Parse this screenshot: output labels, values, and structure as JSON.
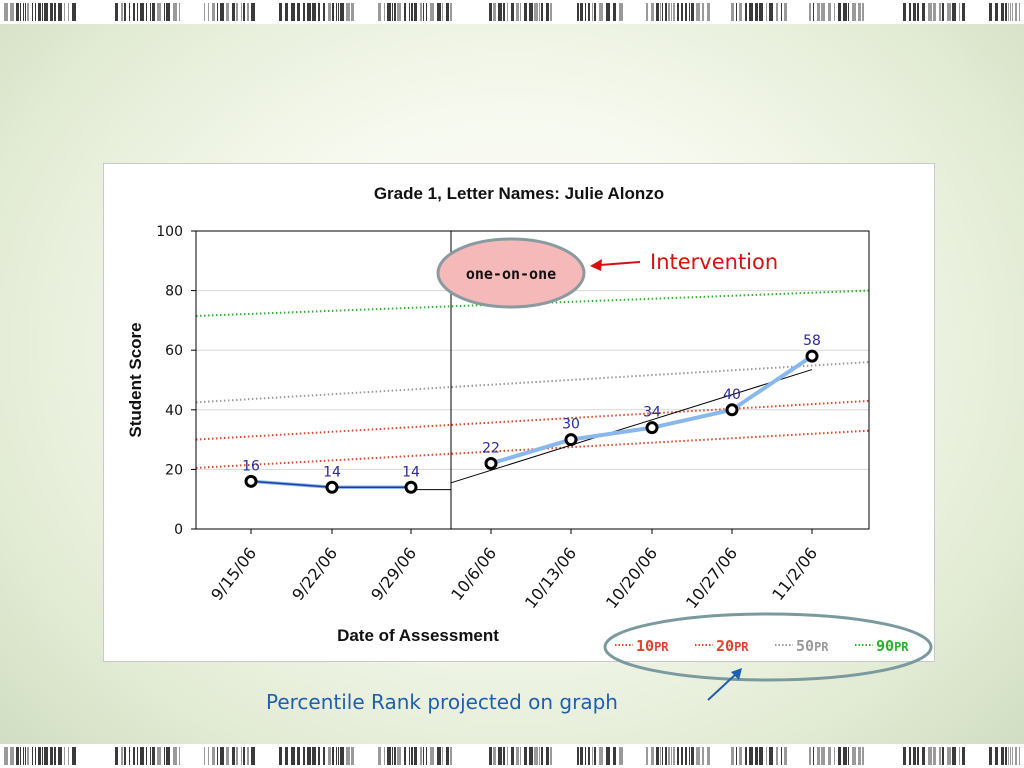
{
  "slide": {
    "caption": "Percentile Rank projected on graph",
    "intervention_label": "Intervention"
  },
  "chart_data": {
    "type": "line",
    "title": "Grade 1, Letter Names: Julie Alonzo",
    "xlabel": "Date of Assessment",
    "ylabel": "Student Score",
    "categories": [
      "9/15/06",
      "9/22/06",
      "9/29/06",
      "10/6/06",
      "10/13/06",
      "10/20/06",
      "10/27/06",
      "11/2/06"
    ],
    "ylim": [
      0,
      100
    ],
    "yticks": [
      0,
      20,
      40,
      60,
      80,
      100
    ],
    "grid": true,
    "series": [
      {
        "role": "baseline",
        "values": [
          16,
          14,
          14,
          null,
          null,
          null,
          null,
          null
        ],
        "data_labels": [
          "16",
          "14",
          "14"
        ]
      },
      {
        "role": "intervention",
        "values": [
          null,
          null,
          null,
          22,
          30,
          34,
          40,
          58
        ],
        "data_labels": [
          "22",
          "30",
          "34",
          "40",
          "58"
        ]
      }
    ],
    "trend_lines": [
      {
        "segment": "baseline",
        "start": [
          2,
          13.2
        ],
        "end": [
          2.5,
          13.2
        ]
      },
      {
        "segment": "intervention",
        "start": [
          2.5,
          15.5
        ],
        "end": [
          7,
          53.5
        ]
      }
    ],
    "phase_change": {
      "after_index": 2,
      "label": "one-on-one"
    },
    "percentile_lines": [
      {
        "label": "10",
        "suffix": "PR",
        "color": "#e0442a",
        "start": 20.5,
        "end": 33
      },
      {
        "label": "20",
        "suffix": "PR",
        "color": "#e0442a",
        "start": 30,
        "end": 43
      },
      {
        "label": "50",
        "suffix": "PR",
        "color": "#9a9a9a",
        "start": 42.5,
        "end": 56
      },
      {
        "label": "90",
        "suffix": "PR",
        "color": "#2db02d",
        "start": 71.5,
        "end": 80
      }
    ],
    "legend_position": "bottom-right",
    "colors": {
      "axis": "#000000",
      "gridline": "#d8d8d8",
      "marker": "#000000",
      "series_highlight": "#88b8ec",
      "baseline_line": "#1a3e9e",
      "data_label": "#2a2a9a",
      "intervention_ellipse_fill": "#f5b9b9",
      "intervention_ellipse_stroke": "#8a9aa0",
      "callout_text": "#d81010",
      "callout_arrow": "#d81010",
      "legend_ellipse_stroke": "#7a9aa0",
      "caption_arrow": "#1f5fb0"
    }
  }
}
